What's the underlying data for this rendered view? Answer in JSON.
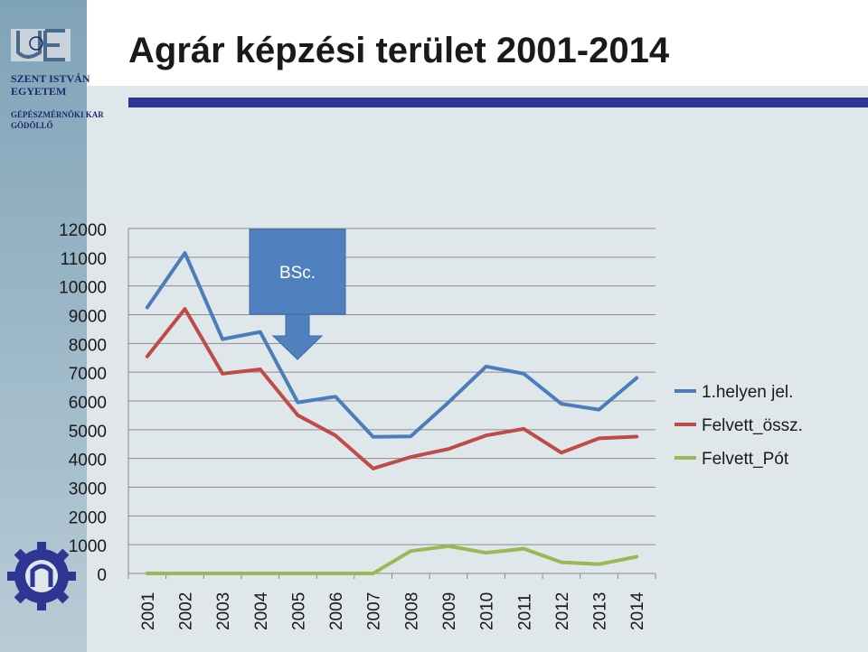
{
  "slide": {
    "title": "Agrár képzési terület 2001-2014",
    "logo": {
      "line1": "SZENT ISTVÁN",
      "line2": "EGYETEM",
      "line3": "GÉPÉSZMÉRNÖKI KAR",
      "line4": "GÖDÖLLŐ"
    },
    "callout": "BSc."
  },
  "colors": {
    "title_rule": "#2e3592",
    "callout": "#4e81bd"
  },
  "chart_data": {
    "type": "line",
    "title": "",
    "xlabel": "",
    "ylabel": "",
    "categories": [
      "2001",
      "2002",
      "2003",
      "2004",
      "2005",
      "2006",
      "2007",
      "2008",
      "2009",
      "2010",
      "2011",
      "2012",
      "2013",
      "2014"
    ],
    "ylim": [
      0,
      12000
    ],
    "yticks": [
      "12000",
      "11000",
      "10000",
      "9000",
      "8000",
      "7000",
      "6000",
      "5000",
      "4000",
      "3000",
      "2000",
      "1000",
      "0"
    ],
    "grid": true,
    "legend_position": "right",
    "series": [
      {
        "name": "1.helyen jel.",
        "color": "#4a7ebb",
        "values": [
          9250,
          11150,
          8150,
          8400,
          5950,
          6150,
          4750,
          4770,
          5950,
          7200,
          6950,
          5900,
          5700,
          6800
        ]
      },
      {
        "name": "Felvett_össz.",
        "color": "#be4b48",
        "values": [
          7550,
          9200,
          6950,
          7100,
          5500,
          4800,
          3650,
          4050,
          4330,
          4800,
          5030,
          4200,
          4700,
          4760
        ]
      },
      {
        "name": "Felvett_Pót",
        "color": "#98b954",
        "values": [
          0,
          0,
          0,
          0,
          0,
          0,
          0,
          780,
          950,
          720,
          860,
          390,
          320,
          580
        ]
      }
    ]
  }
}
